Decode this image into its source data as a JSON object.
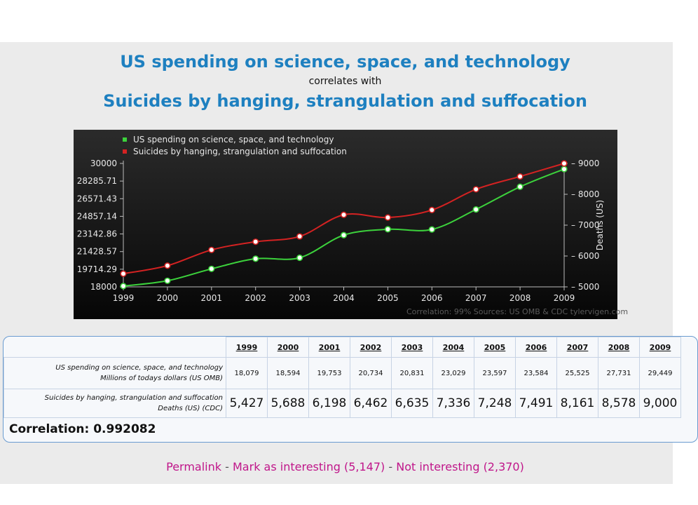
{
  "title": {
    "line1": "US spending on science, space, and technology",
    "line2": "correlates with",
    "line3": "Suicides by hanging, strangulation and suffocation"
  },
  "chart_data": {
    "type": "line",
    "x": [
      1999,
      2000,
      2001,
      2002,
      2003,
      2004,
      2005,
      2006,
      2007,
      2008,
      2009
    ],
    "series": [
      {
        "name": "US spending on science, space, and technology",
        "axis": "left",
        "color": "#3cd23c",
        "values": [
          18079,
          18594,
          19753,
          20734,
          20831,
          23029,
          23597,
          23584,
          25525,
          27731,
          29449
        ]
      },
      {
        "name": "Suicides by hanging, strangulation and suffocation",
        "axis": "right",
        "color": "#d42222",
        "values": [
          5427,
          5688,
          6198,
          6462,
          6635,
          7336,
          7248,
          7491,
          8161,
          8578,
          9000
        ]
      }
    ],
    "y_left": {
      "range": [
        18000,
        30000
      ],
      "ticks": [
        "30000",
        "28285.71",
        "26571.43",
        "24857.14",
        "23142.86",
        "21428.57",
        "19714.29",
        "18000"
      ]
    },
    "y_right": {
      "range": [
        5000,
        9000
      ],
      "ticks": [
        "9000",
        "8000",
        "7000",
        "6000",
        "5000"
      ],
      "label": "Deaths (US)"
    },
    "footer": "Correlation: 99%    Sources: US OMB & CDC    tylervigen.com",
    "legend_position": "top-left",
    "grid": false,
    "background": "#111111"
  },
  "table": {
    "years": [
      "1999",
      "2000",
      "2001",
      "2002",
      "2003",
      "2004",
      "2005",
      "2006",
      "2007",
      "2008",
      "2009"
    ],
    "row1": {
      "label": "US spending on science, space, and technology",
      "sublabel": "Millions of todays dollars (US OMB)",
      "values": [
        "18,079",
        "18,594",
        "19,753",
        "20,734",
        "20,831",
        "23,029",
        "23,597",
        "23,584",
        "25,525",
        "27,731",
        "29,449"
      ]
    },
    "row2": {
      "label": "Suicides by hanging, strangulation and suffocation",
      "sublabel": "Deaths (US) (CDC)",
      "values": [
        "5,427",
        "5,688",
        "6,198",
        "6,462",
        "6,635",
        "7,336",
        "7,248",
        "7,491",
        "8,161",
        "8,578",
        "9,000"
      ]
    },
    "correlation": "Correlation: 0.992082"
  },
  "links": {
    "permalink": "Permalink",
    "sep": "-",
    "interesting": "Mark as interesting (5,147)",
    "not_interesting": "Not interesting (2,370)"
  }
}
